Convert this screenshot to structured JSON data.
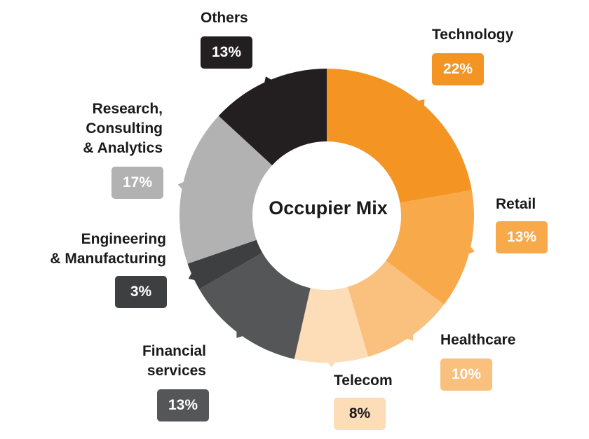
{
  "chart_data": {
    "type": "pie",
    "title": "Occupier Mix",
    "categories": [
      "Technology",
      "Retail",
      "Healthcare",
      "Telecom",
      "Financial services",
      "Engineering & Manufacturing",
      "Research, Consulting & Analytics",
      "Others"
    ],
    "label_lines": [
      [
        "Technology"
      ],
      [
        "Retail"
      ],
      [
        "Healthcare"
      ],
      [
        "Telecom"
      ],
      [
        "Financial",
        "services"
      ],
      [
        "Engineering",
        "& Manufacturing"
      ],
      [
        "Research,",
        "Consulting",
        "& Analytics"
      ],
      [
        "Others"
      ]
    ],
    "values": [
      22,
      13,
      10,
      8,
      13,
      3,
      17,
      13
    ],
    "value_labels": [
      "22%",
      "13%",
      "10%",
      "8%",
      "13%",
      "3%",
      "17%",
      "13%"
    ],
    "colors": [
      "#F39423",
      "#F8A94A",
      "#FAC07E",
      "#FDDDB8",
      "#555657",
      "#3E3F41",
      "#B2B2B2",
      "#231F20"
    ],
    "donut": true,
    "legend": "none"
  }
}
